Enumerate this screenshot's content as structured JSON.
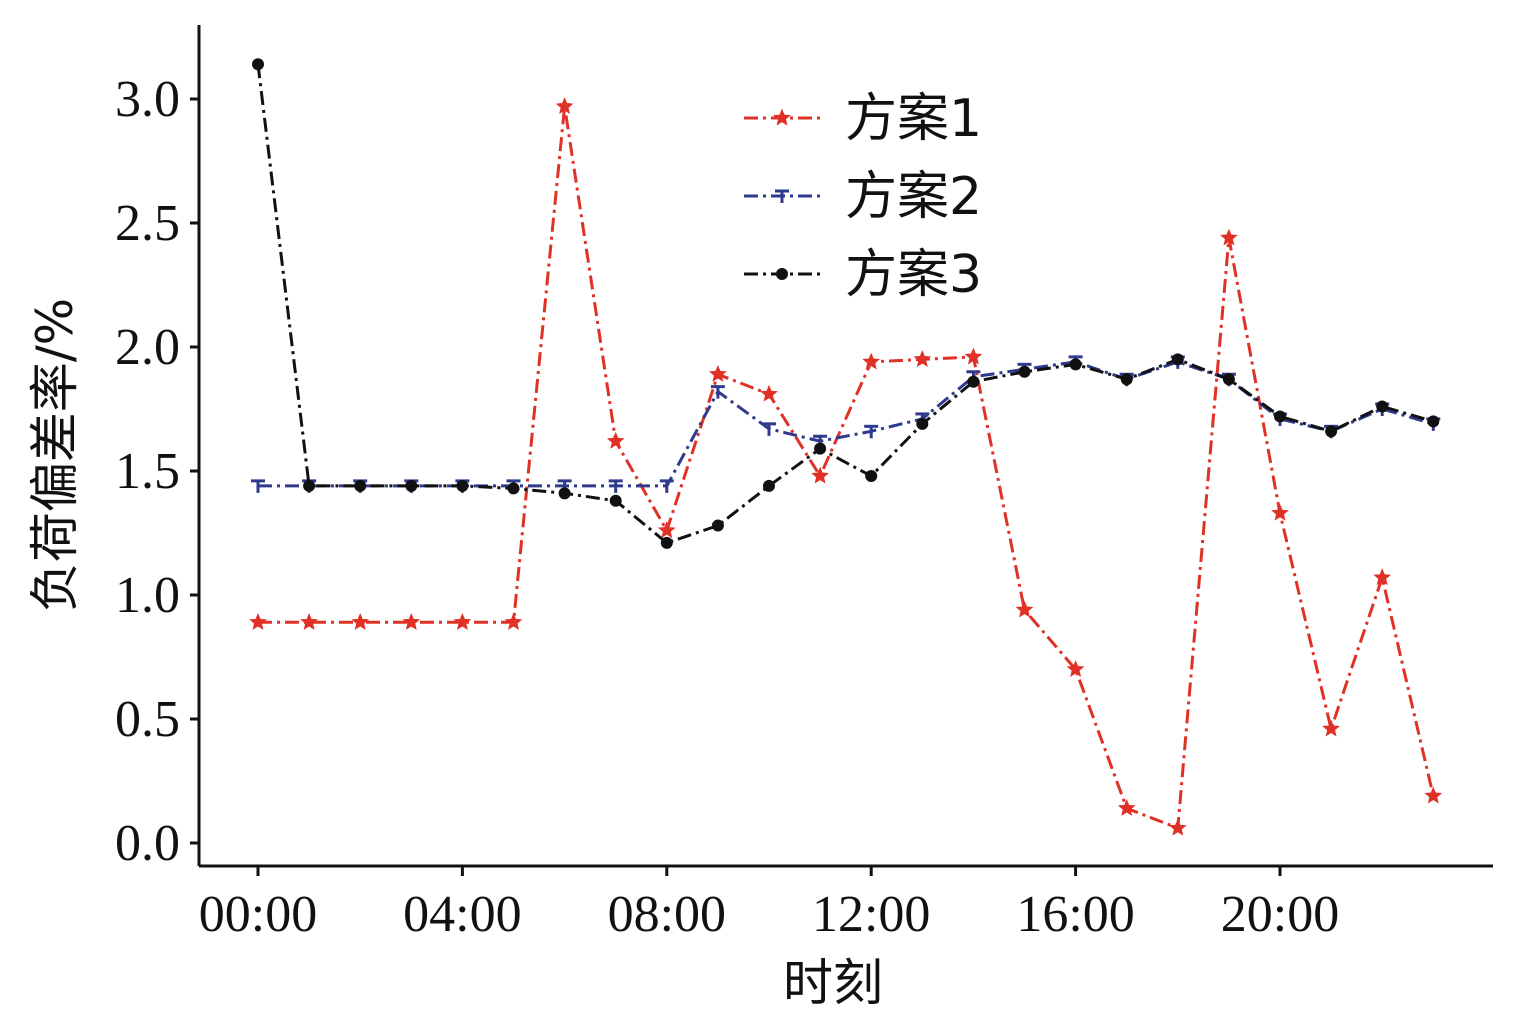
{
  "chart_data": {
    "type": "line",
    "xlabel": "时刻",
    "ylabel": "负荷偏差率/%",
    "x": [
      "00:00",
      "01:00",
      "02:00",
      "03:00",
      "04:00",
      "05:00",
      "06:00",
      "07:00",
      "08:00",
      "09:00",
      "10:00",
      "11:00",
      "12:00",
      "13:00",
      "14:00",
      "15:00",
      "16:00",
      "17:00",
      "18:00",
      "19:00",
      "20:00",
      "21:00",
      "22:00",
      "23:00"
    ],
    "xticks": [
      "00:00",
      "04:00",
      "08:00",
      "12:00",
      "16:00",
      "20:00"
    ],
    "yticks": [
      "0.0",
      "0.5",
      "1.0",
      "1.5",
      "2.0",
      "2.5",
      "3.0"
    ],
    "ylim": [
      -0.1,
      3.3
    ],
    "grid": false,
    "legend_position": "top-center",
    "series": [
      {
        "name": "方案1",
        "color": "#e03127",
        "marker": "star",
        "line_style": "dash-dot",
        "values": [
          0.89,
          0.89,
          0.89,
          0.89,
          0.89,
          0.89,
          2.97,
          1.62,
          1.26,
          1.89,
          1.81,
          1.48,
          1.94,
          1.95,
          1.96,
          0.94,
          0.7,
          0.14,
          0.06,
          2.44,
          1.33,
          0.46,
          1.07,
          0.19
        ]
      },
      {
        "name": "方案2",
        "color": "#2f3a8f",
        "marker": "tri-down",
        "line_style": "dash-dot",
        "values": [
          1.44,
          1.44,
          1.44,
          1.44,
          1.44,
          1.44,
          1.44,
          1.44,
          1.44,
          1.82,
          1.67,
          1.62,
          1.66,
          1.71,
          1.88,
          1.91,
          1.94,
          1.87,
          1.94,
          1.87,
          1.71,
          1.66,
          1.75,
          1.69
        ]
      },
      {
        "name": "方案3",
        "color": "#111111",
        "marker": "circle",
        "line_style": "dash-dot",
        "values": [
          3.14,
          1.44,
          1.44,
          1.44,
          1.44,
          1.43,
          1.41,
          1.38,
          1.21,
          1.28,
          1.44,
          1.59,
          1.48,
          1.69,
          1.86,
          1.9,
          1.93,
          1.87,
          1.95,
          1.87,
          1.72,
          1.66,
          1.76,
          1.7
        ]
      }
    ]
  }
}
